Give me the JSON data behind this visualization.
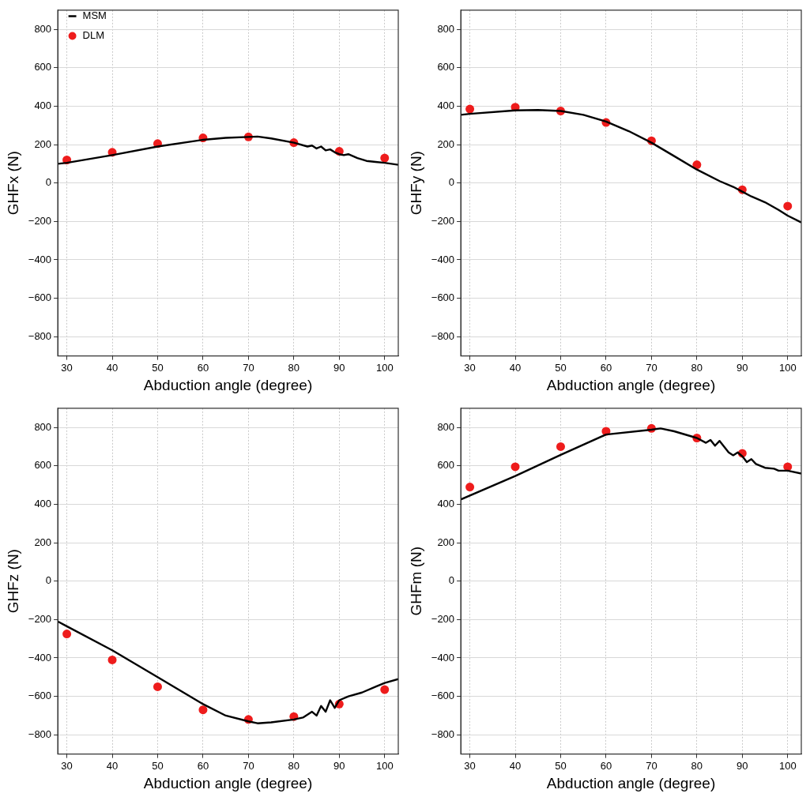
{
  "chart_data": [
    {
      "type": "line",
      "xlabel": "Abduction angle (degree)",
      "ylabel": "GHFx (N)",
      "xlim": [
        28,
        103
      ],
      "xticks": [
        30,
        40,
        50,
        60,
        70,
        80,
        90,
        100
      ],
      "ylim": [
        -900,
        900
      ],
      "yticks": [
        -800,
        -600,
        -400,
        -200,
        0,
        200,
        400,
        600,
        800
      ],
      "grid": true,
      "legend": "top left",
      "series": [
        {
          "name": "MSM",
          "color": "#000000",
          "marker": "none",
          "line_style": "solid",
          "x": [
            28,
            30,
            40,
            50,
            60,
            65,
            70,
            72,
            75,
            80,
            83,
            84,
            85,
            86,
            87,
            88,
            89,
            90,
            91,
            92,
            94,
            96,
            98,
            100,
            103
          ],
          "values": [
            100,
            105,
            145,
            190,
            225,
            235,
            240,
            242,
            232,
            210,
            190,
            195,
            180,
            190,
            170,
            175,
            160,
            150,
            145,
            150,
            130,
            115,
            110,
            105,
            95
          ]
        },
        {
          "name": "DLM",
          "type": "scatter",
          "color": "#ee1c1c",
          "marker": "circle",
          "x": [
            30,
            40,
            50,
            60,
            70,
            80,
            90,
            100
          ],
          "values": [
            120,
            160,
            205,
            235,
            240,
            210,
            165,
            130
          ]
        }
      ]
    },
    {
      "type": "line",
      "xlabel": "Abduction angle (degree)",
      "ylabel": "GHFy (N)",
      "xlim": [
        28,
        103
      ],
      "xticks": [
        30,
        40,
        50,
        60,
        70,
        80,
        90,
        100
      ],
      "ylim": [
        -900,
        900
      ],
      "yticks": [
        -800,
        -600,
        -400,
        -200,
        0,
        200,
        400,
        600,
        800
      ],
      "grid": true,
      "series": [
        {
          "color": "#000000",
          "marker": "none",
          "line_style": "solid",
          "x": [
            28,
            30,
            40,
            45,
            50,
            55,
            60,
            65,
            70,
            75,
            80,
            85,
            88,
            90,
            92,
            95,
            98,
            100,
            103
          ],
          "values": [
            355,
            360,
            378,
            380,
            375,
            355,
            320,
            270,
            210,
            140,
            70,
            10,
            -20,
            -45,
            -70,
            -100,
            -140,
            -170,
            -205
          ]
        },
        {
          "type": "scatter",
          "color": "#ee1c1c",
          "marker": "circle",
          "x": [
            30,
            40,
            50,
            60,
            70,
            80,
            90,
            100
          ],
          "values": [
            385,
            395,
            375,
            315,
            220,
            95,
            -35,
            -120
          ]
        }
      ]
    },
    {
      "type": "line",
      "xlabel": "Abduction angle (degree)",
      "ylabel": "GHFz (N)",
      "xlim": [
        28,
        103
      ],
      "xticks": [
        30,
        40,
        50,
        60,
        70,
        80,
        90,
        100
      ],
      "ylim": [
        -900,
        900
      ],
      "yticks": [
        -800,
        -600,
        -400,
        -200,
        0,
        200,
        400,
        600,
        800
      ],
      "grid": true,
      "series": [
        {
          "color": "#000000",
          "marker": "none",
          "line_style": "solid",
          "x": [
            28,
            30,
            40,
            50,
            60,
            65,
            70,
            72,
            75,
            80,
            82,
            84,
            85,
            86,
            87,
            88,
            89,
            90,
            92,
            95,
            98,
            100,
            103
          ],
          "values": [
            -210,
            -235,
            -360,
            -500,
            -640,
            -700,
            -730,
            -740,
            -735,
            -720,
            -710,
            -680,
            -700,
            -650,
            -680,
            -620,
            -660,
            -620,
            -600,
            -580,
            -550,
            -530,
            -510
          ]
        },
        {
          "type": "scatter",
          "color": "#ee1c1c",
          "marker": "circle",
          "x": [
            30,
            40,
            50,
            60,
            70,
            80,
            90,
            100
          ],
          "values": [
            -275,
            -410,
            -550,
            -670,
            -720,
            -705,
            -640,
            -565
          ]
        }
      ]
    },
    {
      "type": "line",
      "xlabel": "Abduction angle (degree)",
      "ylabel": "GHFm (N)",
      "xlim": [
        28,
        103
      ],
      "xticks": [
        30,
        40,
        50,
        60,
        70,
        80,
        90,
        100
      ],
      "ylim": [
        -900,
        900
      ],
      "yticks": [
        -800,
        -600,
        -400,
        -200,
        0,
        200,
        400,
        600,
        800
      ],
      "grid": true,
      "series": [
        {
          "color": "#000000",
          "marker": "none",
          "line_style": "solid",
          "x": [
            28,
            40,
            50,
            60,
            70,
            72,
            75,
            80,
            82,
            83,
            84,
            85,
            86,
            87,
            88,
            89,
            90,
            91,
            92,
            93,
            95,
            97,
            98,
            100,
            103
          ],
          "values": [
            425,
            547,
            657,
            763,
            788,
            795,
            780,
            745,
            720,
            735,
            705,
            730,
            700,
            670,
            655,
            670,
            650,
            620,
            635,
            610,
            590,
            585,
            575,
            575,
            560
          ]
        },
        {
          "type": "scatter",
          "color": "#ee1c1c",
          "marker": "circle",
          "x": [
            30,
            40,
            50,
            60,
            70,
            80,
            90,
            100
          ],
          "values": [
            490,
            595,
            700,
            780,
            795,
            745,
            665,
            595
          ]
        }
      ]
    }
  ]
}
